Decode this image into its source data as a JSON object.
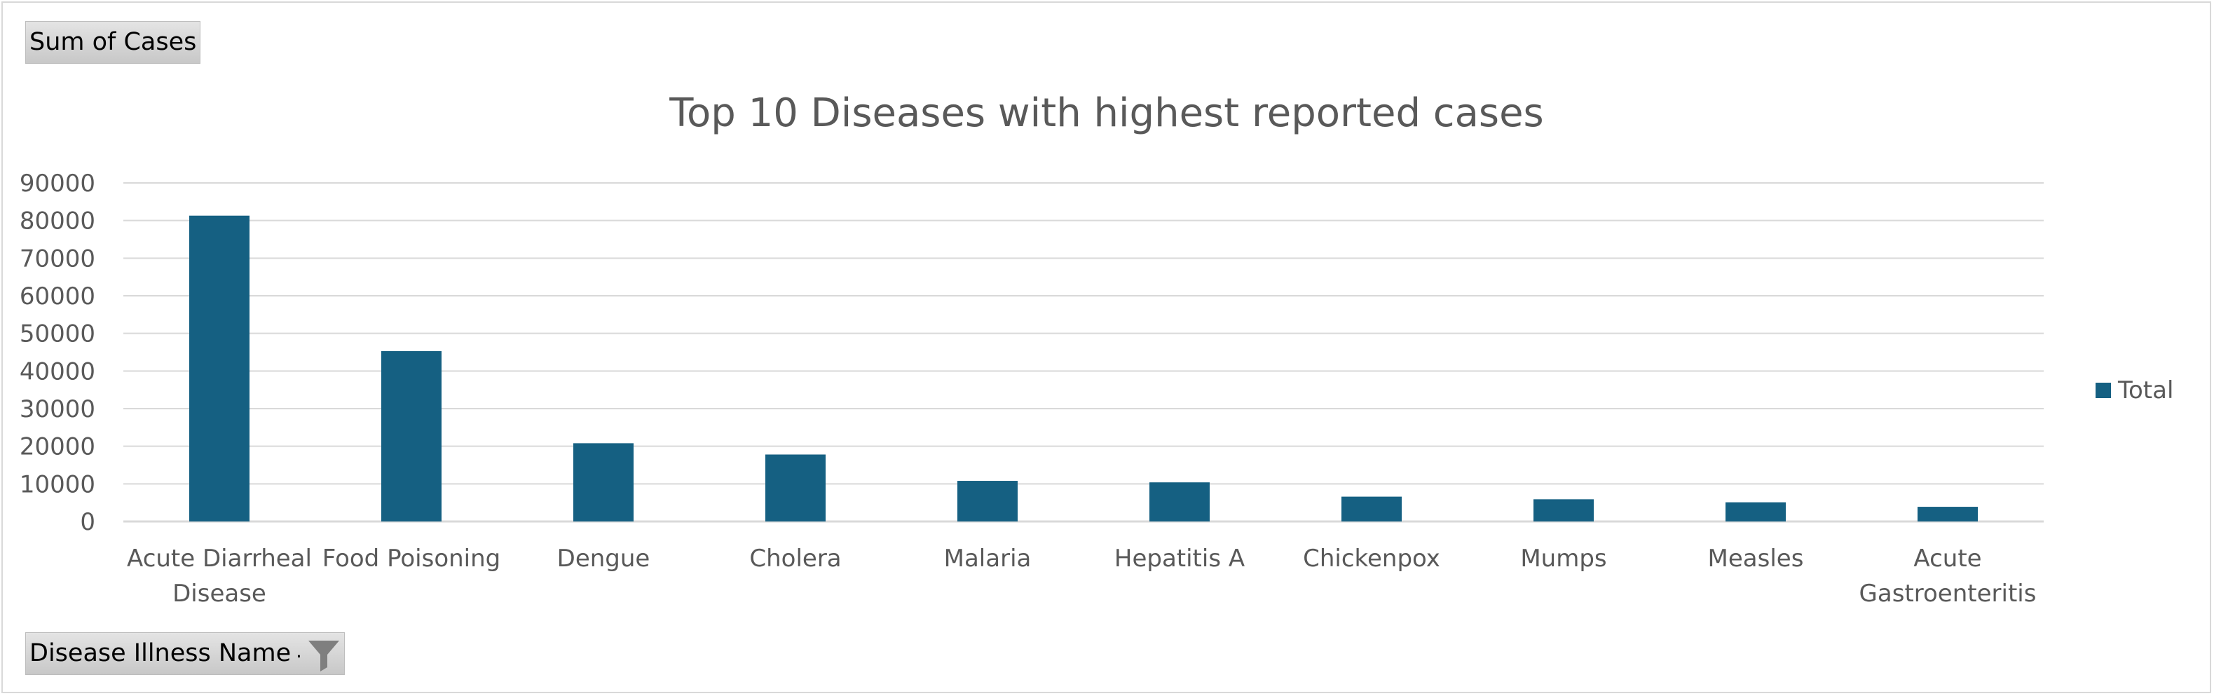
{
  "pivot": {
    "value_field": "Sum of Cases",
    "axis_field": "Disease Illness Name",
    "axis_dropdown_marker": "."
  },
  "colors": {
    "bar": "#156082",
    "gridline": "#d9d9d9",
    "text": "#595959",
    "title": "#595959"
  },
  "icons": {
    "axis_filter": "filter-icon"
  },
  "chart_data": {
    "type": "bar",
    "title": "Top 10 Diseases with highest reported cases",
    "xlabel": "",
    "ylabel": "",
    "categories": [
      [
        "Acute Diarrheal",
        "Disease"
      ],
      [
        "Food Poisoning"
      ],
      [
        "Dengue"
      ],
      [
        "Cholera"
      ],
      [
        "Malaria"
      ],
      [
        "Hepatitis A"
      ],
      [
        "Chickenpox"
      ],
      [
        "Mumps"
      ],
      [
        "Measles"
      ],
      [
        "Acute",
        "Gastroenteritis"
      ]
    ],
    "series": [
      {
        "name": "Total",
        "values": [
          81300,
          45300,
          20800,
          17800,
          10800,
          10400,
          6600,
          5900,
          5100,
          3900
        ]
      }
    ],
    "ylim": [
      0,
      90000
    ],
    "yticks": [
      "0",
      "10000",
      "20000",
      "30000",
      "40000",
      "50000",
      "60000",
      "70000",
      "80000",
      "90000"
    ],
    "grid": true,
    "legend_position": "right"
  }
}
